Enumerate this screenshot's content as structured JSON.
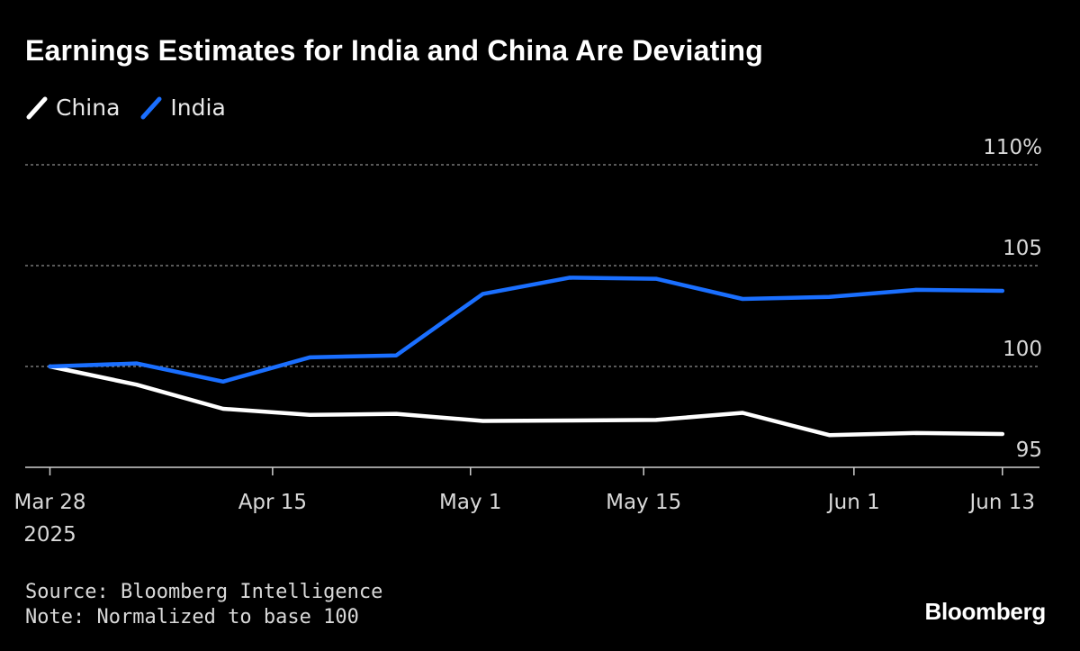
{
  "title": "Earnings Estimates for India and China Are Deviating",
  "colors": {
    "background": "#000000",
    "China": "#ffffff",
    "India": "#1a6fff",
    "grid": "#777777",
    "text": "#d9d9d9"
  },
  "footer": {
    "source": "Source: Bloomberg Intelligence",
    "note": "Note: Normalized to base 100"
  },
  "brand": "Bloomberg",
  "chart_data": {
    "type": "line",
    "title": "Earnings Estimates for India and China Are Deviating",
    "xlabel": "",
    "ylabel": "",
    "ylim": [
      95,
      110
    ],
    "yticks": [
      95,
      100,
      105,
      110
    ],
    "ytick_labels": [
      "95",
      "100",
      "105",
      "110%"
    ],
    "xlim_days": [
      -2,
      80
    ],
    "xticks": [
      {
        "day": 0,
        "label": "Mar 28",
        "sublabel": "2025"
      },
      {
        "day": 18,
        "label": "Apr 15"
      },
      {
        "day": 34,
        "label": "May 1"
      },
      {
        "day": 48,
        "label": "May 15"
      },
      {
        "day": 65,
        "label": "Jun 1"
      },
      {
        "day": 77,
        "label": "Jun 13"
      }
    ],
    "legend": "top-left",
    "grid": true,
    "series": [
      {
        "name": "China",
        "x_days": [
          0,
          7,
          14,
          21,
          28,
          35,
          42,
          49,
          56,
          63,
          70,
          77
        ],
        "values": [
          100,
          99.1,
          97.9,
          97.6,
          97.65,
          97.3,
          97.32,
          97.35,
          97.7,
          96.6,
          96.7,
          96.65
        ]
      },
      {
        "name": "India",
        "x_days": [
          0,
          7,
          14,
          21,
          28,
          35,
          42,
          49,
          56,
          63,
          70,
          77
        ],
        "values": [
          100,
          100.15,
          99.25,
          100.45,
          100.55,
          103.6,
          104.4,
          104.35,
          103.35,
          103.45,
          103.8,
          103.75
        ]
      }
    ]
  }
}
